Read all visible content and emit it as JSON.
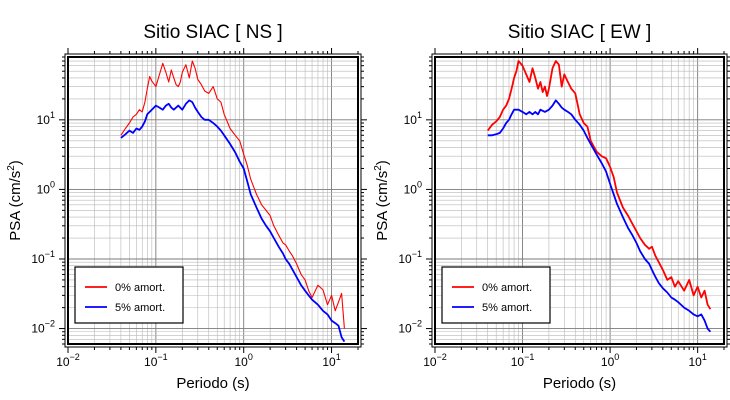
{
  "chart_data": [
    {
      "type": "line",
      "title": "Sitio SIAC [ NS ]",
      "xlabel": "Periodo (s)",
      "ylabel_main": "PSA (cm/s",
      "ylabel_sup": "2",
      "ylabel_close": ")",
      "x_scale": "log",
      "y_scale": "log",
      "xlim": [
        0.01,
        20
      ],
      "ylim": [
        0.006,
        80
      ],
      "grid": true,
      "legend_position": "bottom-left",
      "x_ticks": [
        {
          "base": "10",
          "exp": "−2"
        },
        {
          "base": "10",
          "exp": "−1"
        },
        {
          "base": "10",
          "exp": "0"
        },
        {
          "base": "10",
          "exp": "1"
        }
      ],
      "y_ticks": [
        {
          "base": "10",
          "exp": "−2"
        },
        {
          "base": "10",
          "exp": "−1"
        },
        {
          "base": "10",
          "exp": "0"
        },
        {
          "base": "10",
          "exp": "1"
        }
      ],
      "series": [
        {
          "name": "0% amort.",
          "color": "#ff0000",
          "x": [
            0.04,
            0.045,
            0.05,
            0.055,
            0.06,
            0.065,
            0.07,
            0.075,
            0.08,
            0.085,
            0.09,
            0.1,
            0.11,
            0.12,
            0.13,
            0.14,
            0.15,
            0.16,
            0.17,
            0.18,
            0.19,
            0.2,
            0.22,
            0.24,
            0.26,
            0.28,
            0.3,
            0.33,
            0.36,
            0.4,
            0.45,
            0.5,
            0.55,
            0.6,
            0.7,
            0.8,
            0.9,
            1.0,
            1.1,
            1.2,
            1.4,
            1.6,
            1.8,
            2.0,
            2.2,
            2.5,
            2.8,
            3.0,
            3.3,
            3.6,
            4.0,
            4.5,
            5.0,
            5.5,
            6.0,
            7.0,
            8.0,
            9.0,
            10.0,
            11.0,
            12.0,
            13.0,
            14.0
          ],
          "y": [
            6,
            7.5,
            9,
            11,
            12,
            14,
            13,
            18,
            28,
            42,
            36,
            30,
            45,
            65,
            48,
            35,
            52,
            40,
            32,
            30,
            35,
            48,
            62,
            40,
            70,
            55,
            38,
            32,
            26,
            24,
            30,
            20,
            18,
            12,
            7.5,
            6.0,
            5.0,
            3.2,
            2.2,
            1.4,
            0.85,
            0.6,
            0.5,
            0.42,
            0.3,
            0.22,
            0.17,
            0.16,
            0.13,
            0.11,
            0.085,
            0.06,
            0.05,
            0.035,
            0.028,
            0.042,
            0.036,
            0.022,
            0.03,
            0.018,
            0.024,
            0.032,
            0.01
          ]
        },
        {
          "name": "5% amort.",
          "color": "#0000ff",
          "x": [
            0.04,
            0.045,
            0.05,
            0.055,
            0.06,
            0.065,
            0.07,
            0.075,
            0.08,
            0.09,
            0.1,
            0.11,
            0.12,
            0.13,
            0.14,
            0.15,
            0.16,
            0.18,
            0.2,
            0.22,
            0.24,
            0.26,
            0.28,
            0.3,
            0.33,
            0.36,
            0.4,
            0.45,
            0.5,
            0.55,
            0.6,
            0.7,
            0.8,
            0.9,
            1.0,
            1.1,
            1.2,
            1.4,
            1.6,
            1.8,
            2.0,
            2.2,
            2.5,
            2.8,
            3.0,
            3.3,
            3.6,
            4.0,
            4.5,
            5.0,
            5.5,
            6.0,
            7.0,
            8.0,
            9.0,
            10.0,
            11.0,
            12.0,
            13.0,
            14.0
          ],
          "y": [
            5.5,
            6.2,
            7.0,
            6.5,
            7.5,
            7.2,
            8.0,
            9.5,
            12,
            14,
            16,
            15,
            14,
            16,
            17,
            15,
            14,
            16,
            14,
            17,
            19,
            18,
            15,
            13,
            11,
            10,
            10,
            9,
            8,
            7,
            6,
            4.5,
            3.4,
            2.5,
            2.0,
            1.3,
            0.85,
            0.55,
            0.38,
            0.3,
            0.25,
            0.2,
            0.15,
            0.12,
            0.1,
            0.085,
            0.07,
            0.055,
            0.042,
            0.035,
            0.03,
            0.026,
            0.022,
            0.018,
            0.016,
            0.013,
            0.012,
            0.011,
            0.0075,
            0.0065
          ]
        }
      ]
    },
    {
      "type": "line",
      "title": "Sitio SIAC [ EW ]",
      "xlabel": "Periodo (s)",
      "ylabel_main": "PSA (cm/s",
      "ylabel_sup": "2",
      "ylabel_close": ")",
      "x_scale": "log",
      "y_scale": "log",
      "xlim": [
        0.01,
        20
      ],
      "ylim": [
        0.006,
        80
      ],
      "grid": true,
      "legend_position": "bottom-left",
      "x_ticks": [
        {
          "base": "10",
          "exp": "−2"
        },
        {
          "base": "10",
          "exp": "−1"
        },
        {
          "base": "10",
          "exp": "0"
        },
        {
          "base": "10",
          "exp": "1"
        }
      ],
      "y_ticks": [
        {
          "base": "10",
          "exp": "−2"
        },
        {
          "base": "10",
          "exp": "−1"
        },
        {
          "base": "10",
          "exp": "0"
        },
        {
          "base": "10",
          "exp": "1"
        }
      ],
      "series": [
        {
          "name": "0% amort.",
          "color": "#ff0000",
          "x": [
            0.04,
            0.045,
            0.05,
            0.055,
            0.06,
            0.065,
            0.07,
            0.075,
            0.08,
            0.085,
            0.09,
            0.1,
            0.11,
            0.12,
            0.13,
            0.14,
            0.15,
            0.16,
            0.17,
            0.18,
            0.19,
            0.2,
            0.22,
            0.24,
            0.26,
            0.28,
            0.3,
            0.33,
            0.36,
            0.4,
            0.45,
            0.5,
            0.55,
            0.6,
            0.7,
            0.8,
            0.9,
            1.0,
            1.1,
            1.2,
            1.4,
            1.6,
            1.8,
            2.0,
            2.2,
            2.5,
            2.8,
            3.0,
            3.3,
            3.6,
            4.0,
            4.5,
            5.0,
            5.5,
            6.0,
            7.0,
            8.0,
            9.0,
            10.0,
            11.0,
            12.0,
            13.0,
            14.0
          ],
          "y": [
            7,
            8.5,
            9.5,
            11,
            14,
            16,
            20,
            28,
            40,
            50,
            70,
            60,
            45,
            35,
            55,
            40,
            28,
            35,
            25,
            30,
            22,
            28,
            55,
            70,
            62,
            30,
            45,
            35,
            28,
            24,
            12,
            9,
            8,
            5,
            3.5,
            3.0,
            2.8,
            2.1,
            1.5,
            0.9,
            0.55,
            0.42,
            0.32,
            0.25,
            0.2,
            0.16,
            0.14,
            0.15,
            0.11,
            0.09,
            0.07,
            0.05,
            0.055,
            0.04,
            0.048,
            0.035,
            0.05,
            0.03,
            0.04,
            0.028,
            0.035,
            0.022,
            0.019
          ]
        },
        {
          "name": "5% amort.",
          "color": "#0000ff",
          "x": [
            0.04,
            0.045,
            0.05,
            0.055,
            0.06,
            0.065,
            0.07,
            0.075,
            0.08,
            0.09,
            0.1,
            0.11,
            0.12,
            0.13,
            0.14,
            0.15,
            0.16,
            0.18,
            0.2,
            0.22,
            0.24,
            0.26,
            0.28,
            0.3,
            0.33,
            0.36,
            0.4,
            0.45,
            0.5,
            0.55,
            0.6,
            0.7,
            0.8,
            0.9,
            1.0,
            1.1,
            1.2,
            1.4,
            1.6,
            1.8,
            2.0,
            2.2,
            2.5,
            2.8,
            3.0,
            3.3,
            3.6,
            4.0,
            4.5,
            5.0,
            5.5,
            6.0,
            7.0,
            8.0,
            9.0,
            10.0,
            11.0,
            12.0,
            13.0,
            14.0
          ],
          "y": [
            6,
            6,
            6.2,
            6.5,
            7.5,
            9,
            10,
            12,
            14,
            14,
            13,
            12,
            13,
            12,
            13,
            12,
            14,
            13,
            14,
            16,
            19,
            17,
            15,
            14,
            13,
            12,
            10,
            8.5,
            7,
            5.5,
            4.5,
            3.2,
            2.4,
            1.8,
            1.2,
            0.85,
            0.62,
            0.4,
            0.28,
            0.22,
            0.17,
            0.13,
            0.1,
            0.085,
            0.07,
            0.055,
            0.045,
            0.038,
            0.033,
            0.028,
            0.026,
            0.024,
            0.02,
            0.018,
            0.016,
            0.015,
            0.016,
            0.013,
            0.01,
            0.009
          ]
        }
      ]
    }
  ]
}
